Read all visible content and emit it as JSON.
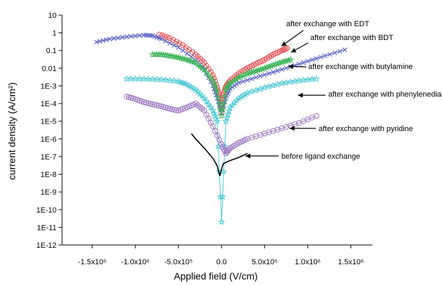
{
  "chart_data": {
    "type": "scatter",
    "xlabel": "Applied field (V/cm)",
    "ylabel": "current density (A/cm²)",
    "xlim": [
      -1850000.0,
      1750000.0
    ],
    "ylim_exp": [
      -12,
      1
    ],
    "y_scale": "log",
    "grid": false,
    "x_ticks": [
      {
        "value": -1500000.0,
        "label": "-1.5x10⁶"
      },
      {
        "value": -1000000.0,
        "label": "-1.0x10⁶"
      },
      {
        "value": -500000.0,
        "label": "-5.0x10⁵"
      },
      {
        "value": 0,
        "label": "0.0"
      },
      {
        "value": 500000.0,
        "label": "5.0x10⁵"
      },
      {
        "value": 1000000.0,
        "label": "1.0x10⁶"
      },
      {
        "value": 1500000.0,
        "label": "1.5x10⁶"
      }
    ],
    "y_ticks": [
      {
        "exp": 1,
        "label": "10"
      },
      {
        "exp": 0,
        "label": "1"
      },
      {
        "exp": -1,
        "label": "0.1"
      },
      {
        "exp": -2,
        "label": "0.01"
      },
      {
        "exp": -3,
        "label": "1E-3"
      },
      {
        "exp": -4,
        "label": "1E-4"
      },
      {
        "exp": -5,
        "label": "1E-5"
      },
      {
        "exp": -6,
        "label": "1E-6"
      },
      {
        "exp": -7,
        "label": "1E-7"
      },
      {
        "exp": -8,
        "label": "1E-8"
      },
      {
        "exp": -9,
        "label": "1E-9"
      },
      {
        "exp": -10,
        "label": "1E-10"
      },
      {
        "exp": -11,
        "label": "1E-11"
      },
      {
        "exp": -12,
        "label": "1E-12"
      }
    ],
    "series": [
      {
        "name": "after exchange with EDT",
        "color": "#e8474b",
        "marker": "circle",
        "points": [
          [
            -720000.0,
            0.8
          ],
          [
            -600000.0,
            0.5
          ],
          [
            -450000.0,
            0.2
          ],
          [
            -300000.0,
            0.06
          ],
          [
            -200000.0,
            0.02
          ],
          [
            -100000.0,
            0.004
          ],
          [
            -50000.0,
            0.0008
          ],
          [
            -20000.0,
            0.0002
          ],
          [
            0,
            3e-05
          ],
          [
            20000.0,
            0.0003
          ],
          [
            50000.0,
            0.0009
          ],
          [
            100000.0,
            0.002
          ],
          [
            200000.0,
            0.005
          ],
          [
            300000.0,
            0.01
          ],
          [
            400000.0,
            0.018
          ],
          [
            500000.0,
            0.03
          ],
          [
            600000.0,
            0.06
          ],
          [
            700000.0,
            0.1
          ],
          [
            760000.0,
            0.14
          ]
        ]
      },
      {
        "name": "after exchange with BDT",
        "color": "#5b66c9",
        "marker": "x",
        "points": [
          [
            -1450000.0,
            0.3
          ],
          [
            -1300000.0,
            0.45
          ],
          [
            -1100000.0,
            0.6
          ],
          [
            -900000.0,
            0.75
          ],
          [
            -800000.0,
            0.7
          ],
          [
            -700000.0,
            0.45
          ],
          [
            -500000.0,
            0.15
          ],
          [
            -300000.0,
            0.03
          ],
          [
            -200000.0,
            0.008
          ],
          [
            -100000.0,
            0.001
          ],
          [
            -50000.0,
            0.0002
          ],
          [
            0,
            3e-05
          ],
          [
            50000.0,
            0.0002
          ],
          [
            100000.0,
            0.0007
          ],
          [
            200000.0,
            0.0015
          ],
          [
            400000.0,
            0.003
          ],
          [
            600000.0,
            0.006
          ],
          [
            800000.0,
            0.012
          ],
          [
            1000000.0,
            0.025
          ],
          [
            1200000.0,
            0.05
          ],
          [
            1430000.0,
            0.11
          ]
        ]
      },
      {
        "name": "after exchange with butylamine",
        "color": "#3fb55a",
        "marker": "star",
        "points": [
          [
            -800000.0,
            0.06
          ],
          [
            -700000.0,
            0.06
          ],
          [
            -600000.0,
            0.05
          ],
          [
            -500000.0,
            0.04
          ],
          [
            -400000.0,
            0.03
          ],
          [
            -300000.0,
            0.02
          ],
          [
            -200000.0,
            0.008
          ],
          [
            -100000.0,
            0.002
          ],
          [
            -50000.0,
            0.0005
          ],
          [
            0,
            2e-05
          ],
          [
            50000.0,
            0.0006
          ],
          [
            100000.0,
            0.0015
          ],
          [
            200000.0,
            0.003
          ],
          [
            300000.0,
            0.005
          ],
          [
            400000.0,
            0.007
          ],
          [
            500000.0,
            0.01
          ],
          [
            600000.0,
            0.015
          ],
          [
            700000.0,
            0.022
          ],
          [
            800000.0,
            0.03
          ]
        ]
      },
      {
        "name": "after exchange with phenylenediamine",
        "color": "#4bc8d6",
        "marker": "star",
        "points": [
          [
            -1100000.0,
            0.0025
          ],
          [
            -900000.0,
            0.0025
          ],
          [
            -700000.0,
            0.0023
          ],
          [
            -500000.0,
            0.0018
          ],
          [
            -400000.0,
            0.0012
          ],
          [
            -300000.0,
            0.0006
          ],
          [
            -200000.0,
            0.0002
          ],
          [
            -100000.0,
            4e-05
          ],
          [
            -50000.0,
            1e-05
          ],
          [
            0,
            2e-11
          ],
          [
            50000.0,
            1e-05
          ],
          [
            100000.0,
            6e-05
          ],
          [
            200000.0,
            0.0002
          ],
          [
            300000.0,
            0.0004
          ],
          [
            500000.0,
            0.0008
          ],
          [
            700000.0,
            0.0014
          ],
          [
            900000.0,
            0.002
          ],
          [
            1100000.0,
            0.0025
          ]
        ]
      },
      {
        "name": "after exchange with pyridine",
        "color": "#9b72c0",
        "marker": "circle",
        "points": [
          [
            -1100000.0,
            0.00025
          ],
          [
            -1000000.0,
            0.00018
          ],
          [
            -900000.0,
            0.00012
          ],
          [
            -800000.0,
            9e-05
          ],
          [
            -700000.0,
            7e-05
          ],
          [
            -600000.0,
            5e-05
          ],
          [
            -500000.0,
            4e-05
          ],
          [
            -400000.0,
            6e-05
          ],
          [
            -300000.0,
            0.0001
          ],
          [
            -200000.0,
            4e-05
          ],
          [
            -100000.0,
            5e-06
          ],
          [
            0,
            5e-07
          ],
          [
            50000.0,
            1.5e-07
          ],
          [
            100000.0,
            3e-07
          ],
          [
            200000.0,
            6e-07
          ],
          [
            300000.0,
            1e-06
          ],
          [
            500000.0,
            2e-06
          ],
          [
            700000.0,
            4e-06
          ],
          [
            900000.0,
            8e-06
          ],
          [
            1100000.0,
            2e-05
          ]
        ]
      },
      {
        "name": "before ligand exchange",
        "color": "#000000",
        "marker": "line",
        "points": [
          [
            -350000.0,
            2e-06
          ],
          [
            -300000.0,
            1e-06
          ],
          [
            -200000.0,
            3e-07
          ],
          [
            -100000.0,
            8e-08
          ],
          [
            -50000.0,
            3e-08
          ],
          [
            -20000.0,
            8e-09
          ],
          [
            0,
            2e-08
          ],
          [
            20000.0,
            4e-08
          ],
          [
            100000.0,
            6e-08
          ],
          [
            200000.0,
            9e-08
          ],
          [
            300000.0,
            1.5e-07
          ]
        ]
      }
    ],
    "annotations": [
      {
        "text": "after exchange with EDT",
        "series": 0
      },
      {
        "text": "after exchange with BDT",
        "series": 1
      },
      {
        "text": "after exchange with butylamine",
        "series": 2
      },
      {
        "text": "after exchange with phenylenediamine",
        "series": 3
      },
      {
        "text": "after exchange with pyridine",
        "series": 4
      },
      {
        "text": "before ligand exchange",
        "series": 5
      }
    ]
  }
}
